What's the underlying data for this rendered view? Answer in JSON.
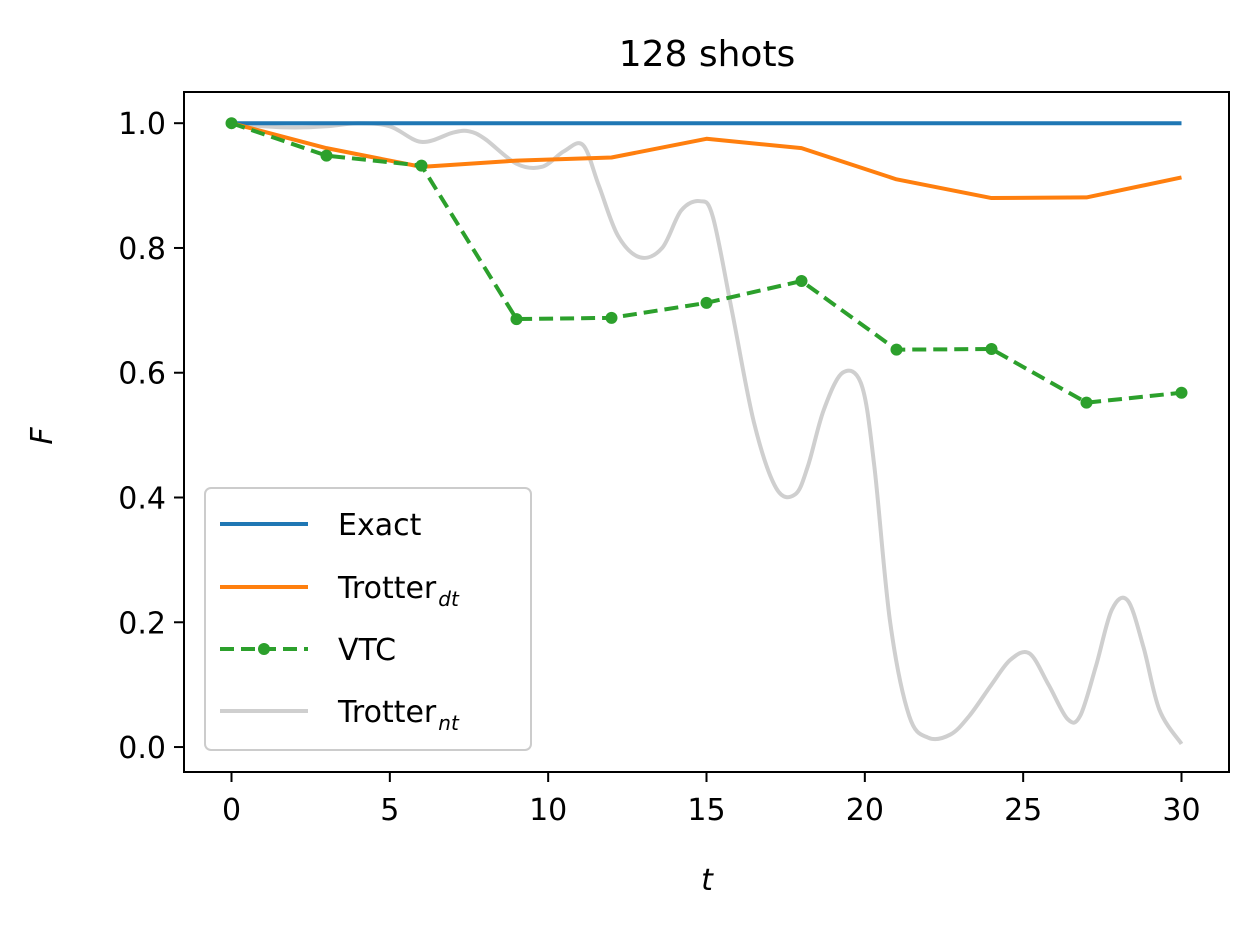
{
  "chart_data": {
    "type": "line",
    "title": "128 shots",
    "xlabel": "t",
    "ylabel": "F",
    "xlim": [
      -1.5,
      31.5
    ],
    "ylim": [
      -0.04,
      1.05
    ],
    "xticks": [
      0,
      5,
      10,
      15,
      20,
      25,
      30
    ],
    "yticks": [
      0.0,
      0.2,
      0.4,
      0.6,
      0.8,
      1.0
    ],
    "xtick_labels": [
      "0",
      "5",
      "10",
      "15",
      "20",
      "25",
      "30"
    ],
    "ytick_labels": [
      "0.0",
      "0.2",
      "0.4",
      "0.6",
      "0.8",
      "1.0"
    ],
    "grid": false,
    "legend_position": "lower-left",
    "series": [
      {
        "name": "Exact",
        "color": "#1f77b4",
        "style": "solid",
        "x": [
          0,
          30
        ],
        "y": [
          1.0,
          1.0
        ]
      },
      {
        "name": "Trotter",
        "name_sub": "dt",
        "color": "#ff7f0e",
        "style": "solid",
        "x": [
          0,
          3,
          6,
          9,
          12,
          15,
          18,
          21,
          24,
          27,
          30
        ],
        "y": [
          1.0,
          0.96,
          0.93,
          0.94,
          0.945,
          0.975,
          0.96,
          0.91,
          0.88,
          0.881,
          0.913
        ]
      },
      {
        "name": "VTC",
        "color": "#2ca02c",
        "style": "dashed",
        "markers": true,
        "x": [
          0,
          3,
          6,
          9,
          12,
          15,
          18,
          21,
          24,
          27,
          30
        ],
        "y": [
          1.0,
          0.948,
          0.932,
          0.686,
          0.688,
          0.712,
          0.747,
          0.637,
          0.638,
          0.552,
          0.568
        ]
      },
      {
        "name": "Trotter",
        "name_sub": "nt",
        "color": "#cfcfcf",
        "style": "solid",
        "x": [
          0,
          1,
          2,
          3,
          4,
          5,
          6,
          7,
          7.5,
          8,
          9,
          9.8,
          10.5,
          11.1,
          11.6,
          12.2,
          12.9,
          13.6,
          14.2,
          14.8,
          15.2,
          15.8,
          16.5,
          17.2,
          17.8,
          18.2,
          18.7,
          19.3,
          19.9,
          20.3,
          20.8,
          21.4,
          22.0,
          22.7,
          23.3,
          24.0,
          24.6,
          25.2,
          25.8,
          26.4,
          26.8,
          27.3,
          27.8,
          28.3,
          28.8,
          29.3,
          30
        ],
        "y": [
          1.0,
          0.995,
          0.993,
          0.995,
          1.0,
          0.995,
          0.97,
          0.985,
          0.987,
          0.975,
          0.935,
          0.93,
          0.955,
          0.965,
          0.9,
          0.82,
          0.785,
          0.8,
          0.86,
          0.875,
          0.85,
          0.7,
          0.52,
          0.415,
          0.405,
          0.45,
          0.54,
          0.6,
          0.58,
          0.45,
          0.2,
          0.05,
          0.015,
          0.02,
          0.05,
          0.1,
          0.14,
          0.15,
          0.1,
          0.045,
          0.05,
          0.13,
          0.22,
          0.235,
          0.16,
          0.06,
          0.005
        ]
      }
    ]
  }
}
